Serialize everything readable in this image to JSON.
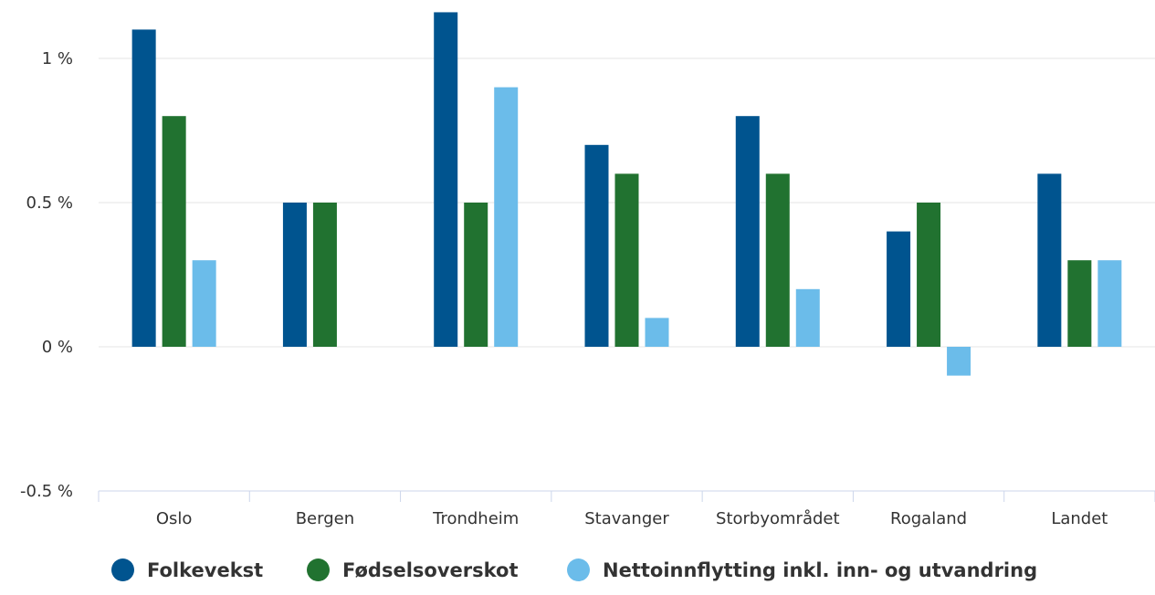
{
  "chart_data": {
    "type": "bar",
    "categories": [
      "Oslo",
      "Bergen",
      "Trondheim",
      "Stavanger",
      "Storbyområdet",
      "Rogaland",
      "Landet"
    ],
    "series": [
      {
        "name": "Folkevekst",
        "color": "#00548f",
        "values": [
          1.1,
          0.5,
          1.16,
          0.7,
          0.8,
          0.4,
          0.6
        ]
      },
      {
        "name": "Fødselsoverskot",
        "color": "#217230",
        "values": [
          0.8,
          0.5,
          0.5,
          0.6,
          0.6,
          0.5,
          0.3
        ]
      },
      {
        "name": "Nettoinnflytting inkl. inn- og utvandring",
        "color": "#6bbcea",
        "values": [
          0.3,
          null,
          0.9,
          0.1,
          0.2,
          -0.1,
          0.3
        ]
      }
    ],
    "y_ticks": [
      {
        "value": 1,
        "label": "1 %"
      },
      {
        "value": 0.5,
        "label": "0.5 %"
      },
      {
        "value": 0,
        "label": "0 %"
      },
      {
        "value": -0.5,
        "label": "-0.5 %"
      }
    ],
    "ylim": [
      -0.5,
      1.16
    ],
    "grid": true,
    "legend_position": "bottom-center",
    "title": "",
    "xlabel": "",
    "ylabel": ""
  }
}
